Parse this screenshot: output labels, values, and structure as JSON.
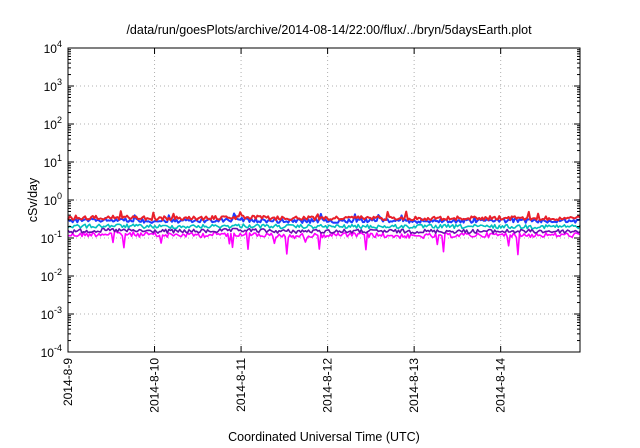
{
  "chart_data": {
    "type": "line",
    "title": "/data/run/goesPlots/archive/2014-08-14/22:00/flux/../bryn/5daysEarth.plot",
    "xlabel": "Coordinated Universal Time (UTC)",
    "ylabel": "cSv/day",
    "yscale": "log",
    "ylim": [
      0.0001,
      10000
    ],
    "xlim": [
      "2014-08-09T00:00",
      "2014-08-14T22:00"
    ],
    "x_tick_labels": [
      "2014-8-9",
      "2014-8-10",
      "2014-8-11",
      "2014-8-12",
      "2014-8-13",
      "2014-8-14"
    ],
    "y_tick_labels": [
      {
        "base": "10",
        "exp": "-4"
      },
      {
        "base": "10",
        "exp": "-3"
      },
      {
        "base": "10",
        "exp": "-2"
      },
      {
        "base": "10",
        "exp": "-1"
      },
      {
        "base": "10",
        "exp": "0"
      },
      {
        "base": "10",
        "exp": "1"
      },
      {
        "base": "10",
        "exp": "2"
      },
      {
        "base": "10",
        "exp": "3"
      },
      {
        "base": "10",
        "exp": "4"
      }
    ],
    "grid": true,
    "legend": "none",
    "series": [
      {
        "color": "#ff00ff",
        "x": [
          "2014-08-09",
          "2014-08-09T12:00",
          "2014-08-10",
          "2014-08-10T12:00",
          "2014-08-11",
          "2014-08-11T12:00",
          "2014-08-12",
          "2014-08-12T12:00",
          "2014-08-13",
          "2014-08-13T12:00",
          "2014-08-14",
          "2014-08-14T12:00",
          "2014-08-14T22:00"
        ],
        "values": [
          0.12,
          0.13,
          0.12,
          0.12,
          0.13,
          0.11,
          0.12,
          0.12,
          0.11,
          0.12,
          0.12,
          0.12,
          0.12
        ]
      },
      {
        "color": "#6a0dad",
        "x": [
          "2014-08-09",
          "2014-08-09T12:00",
          "2014-08-10",
          "2014-08-10T12:00",
          "2014-08-11",
          "2014-08-11T12:00",
          "2014-08-12",
          "2014-08-12T12:00",
          "2014-08-13",
          "2014-08-13T12:00",
          "2014-08-14",
          "2014-08-14T12:00",
          "2014-08-14T22:00"
        ],
        "values": [
          0.15,
          0.16,
          0.15,
          0.15,
          0.16,
          0.15,
          0.15,
          0.15,
          0.15,
          0.15,
          0.15,
          0.15,
          0.15
        ]
      },
      {
        "color": "#00bfbf",
        "x": [
          "2014-08-09",
          "2014-08-09T12:00",
          "2014-08-10",
          "2014-08-10T12:00",
          "2014-08-11",
          "2014-08-11T12:00",
          "2014-08-12",
          "2014-08-12T12:00",
          "2014-08-13",
          "2014-08-13T12:00",
          "2014-08-14",
          "2014-08-14T12:00",
          "2014-08-14T22:00"
        ],
        "values": [
          0.2,
          0.21,
          0.2,
          0.2,
          0.21,
          0.2,
          0.2,
          0.2,
          0.2,
          0.2,
          0.2,
          0.2,
          0.2
        ]
      },
      {
        "color": "#1e3cff",
        "x": [
          "2014-08-09",
          "2014-08-09T12:00",
          "2014-08-10",
          "2014-08-10T12:00",
          "2014-08-11",
          "2014-08-11T12:00",
          "2014-08-12",
          "2014-08-12T12:00",
          "2014-08-13",
          "2014-08-13T12:00",
          "2014-08-14",
          "2014-08-14T12:00",
          "2014-08-14T22:00"
        ],
        "values": [
          0.28,
          0.3,
          0.28,
          0.28,
          0.3,
          0.28,
          0.28,
          0.29,
          0.28,
          0.28,
          0.29,
          0.28,
          0.28
        ]
      },
      {
        "color": "#e8202a",
        "x": [
          "2014-08-09",
          "2014-08-09T12:00",
          "2014-08-10",
          "2014-08-10T12:00",
          "2014-08-11",
          "2014-08-11T12:00",
          "2014-08-12",
          "2014-08-12T12:00",
          "2014-08-13",
          "2014-08-13T12:00",
          "2014-08-14",
          "2014-08-14T12:00",
          "2014-08-14T22:00"
        ],
        "values": [
          0.33,
          0.35,
          0.33,
          0.33,
          0.35,
          0.33,
          0.33,
          0.34,
          0.33,
          0.33,
          0.34,
          0.33,
          0.33
        ]
      }
    ]
  }
}
